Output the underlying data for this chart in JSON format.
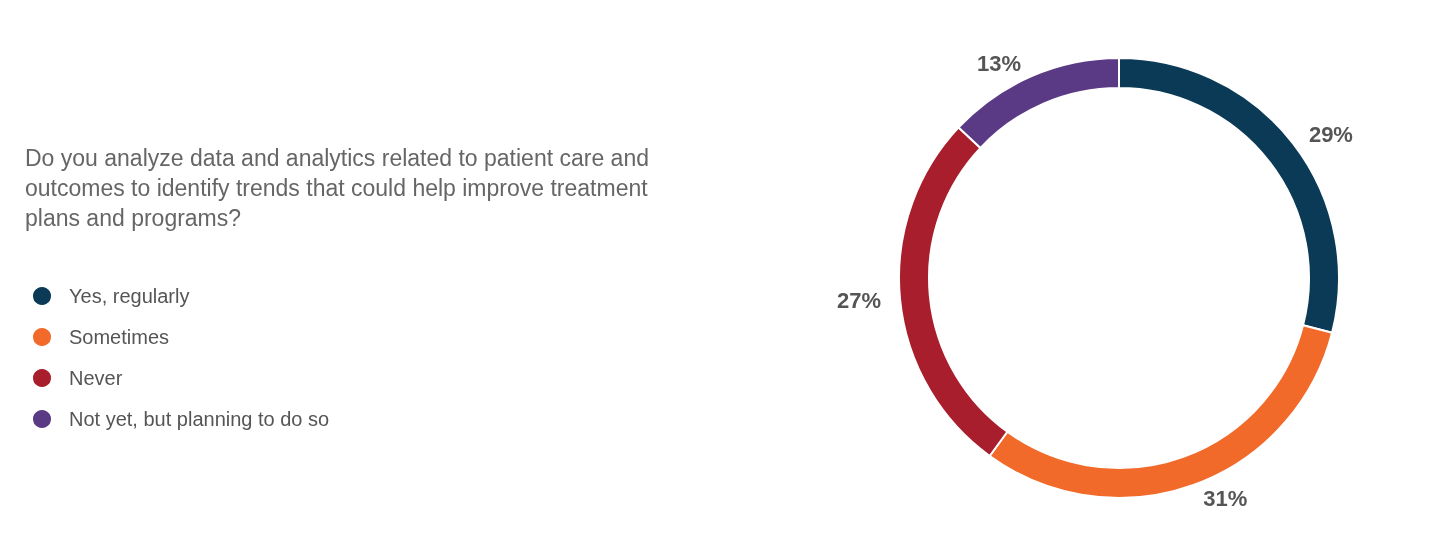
{
  "chart_data": {
    "type": "donut",
    "title": "Do you analyze data and analytics related to patient care and outcomes to identify trends that could help improve treatment plans and programs?",
    "categories": [
      "Yes, regularly",
      "Sometimes",
      "Never",
      "Not yet, but planning to do so"
    ],
    "values": [
      29,
      31,
      27,
      13
    ],
    "colors": [
      "#0b3a57",
      "#f26a2a",
      "#a81e2d",
      "#5a3a85"
    ],
    "value_labels": [
      "29%",
      "31%",
      "27%",
      "13%"
    ],
    "legend": "left"
  }
}
